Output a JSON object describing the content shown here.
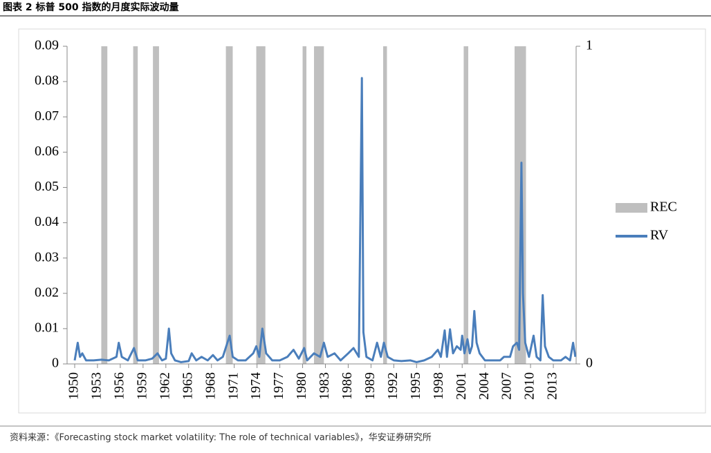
{
  "chart_data": {
    "type": "line",
    "title": "图表 2 标普 500 指数的月度实际波动量",
    "source": "资料来源：《Forecasting stock market volatility: The role of technical variables》，华安证券研究所",
    "xlim": [
      1949,
      2016
    ],
    "xticks": [
      1950,
      1953,
      1956,
      1959,
      1962,
      1965,
      1968,
      1971,
      1974,
      1977,
      1980,
      1983,
      1986,
      1989,
      1992,
      1995,
      1998,
      2001,
      2004,
      2007,
      2010,
      2013
    ],
    "ylim": [
      0,
      0.09
    ],
    "yticks": [
      0,
      0.01,
      0.02,
      0.03,
      0.04,
      0.05,
      0.06,
      0.07,
      0.08,
      0.09
    ],
    "y2lim": [
      0,
      1
    ],
    "y2ticks": [
      0,
      1
    ],
    "recessions": {
      "name": "REC",
      "color": "#bfbfbf",
      "axis": "y2",
      "x_start": [
        1953.5,
        1957.7,
        1960.3,
        1969.9,
        1973.9,
        1980.0,
        1981.5,
        1990.6,
        2001.2,
        2007.9
      ],
      "x_end": [
        1954.3,
        1958.3,
        1961.1,
        1970.8,
        1975.1,
        1980.5,
        1982.8,
        1991.1,
        2001.8,
        2009.4
      ],
      "values": [
        1,
        1,
        1,
        1,
        1,
        1,
        1,
        1,
        1,
        1
      ]
    },
    "series": [
      {
        "name": "RV",
        "color": "#4a7ebb",
        "x": [
          1950.0,
          1950.4,
          1950.7,
          1951.0,
          1951.5,
          1952.5,
          1953.5,
          1954.5,
          1955.5,
          1955.8,
          1956.2,
          1957.0,
          1957.8,
          1958.3,
          1959.3,
          1960.2,
          1960.9,
          1961.5,
          1962.0,
          1962.4,
          1962.7,
          1963.2,
          1964.0,
          1965.0,
          1965.4,
          1966.0,
          1966.7,
          1967.5,
          1968.2,
          1968.8,
          1969.5,
          1970.4,
          1970.8,
          1971.5,
          1972.5,
          1973.5,
          1973.9,
          1974.3,
          1974.7,
          1975.2,
          1976.0,
          1977.0,
          1978.0,
          1978.8,
          1979.5,
          1980.2,
          1980.6,
          1981.5,
          1982.3,
          1982.8,
          1983.3,
          1984.2,
          1985.0,
          1986.0,
          1986.7,
          1987.4,
          1987.8,
          1988.0,
          1988.4,
          1989.2,
          1989.8,
          1990.3,
          1990.7,
          1991.2,
          1992.0,
          1993.0,
          1994.2,
          1995.0,
          1996.0,
          1997.0,
          1997.8,
          1998.2,
          1998.7,
          1999.0,
          1999.4,
          1999.8,
          2000.3,
          2000.8,
          2001.0,
          2001.3,
          2001.7,
          2002.0,
          2002.3,
          2002.6,
          2002.9,
          2003.3,
          2004.0,
          2005.0,
          2006.0,
          2006.5,
          2007.3,
          2007.7,
          2008.2,
          2008.5,
          2008.8,
          2009.0,
          2009.3,
          2009.8,
          2010.4,
          2010.8,
          2011.3,
          2011.6,
          2011.9,
          2012.4,
          2013.0,
          2014.0,
          2014.6,
          2015.2,
          2015.6,
          2015.9
        ],
        "values": [
          0.001,
          0.006,
          0.002,
          0.003,
          0.001,
          0.001,
          0.0012,
          0.001,
          0.002,
          0.006,
          0.002,
          0.001,
          0.0045,
          0.001,
          0.001,
          0.0015,
          0.003,
          0.001,
          0.0015,
          0.01,
          0.003,
          0.001,
          0.0005,
          0.0008,
          0.003,
          0.001,
          0.002,
          0.001,
          0.0025,
          0.001,
          0.002,
          0.008,
          0.002,
          0.001,
          0.001,
          0.003,
          0.005,
          0.002,
          0.01,
          0.003,
          0.001,
          0.001,
          0.002,
          0.004,
          0.0015,
          0.0045,
          0.001,
          0.003,
          0.002,
          0.006,
          0.002,
          0.003,
          0.001,
          0.003,
          0.0045,
          0.002,
          0.081,
          0.009,
          0.002,
          0.001,
          0.006,
          0.002,
          0.006,
          0.002,
          0.001,
          0.0008,
          0.001,
          0.0005,
          0.001,
          0.002,
          0.004,
          0.002,
          0.0095,
          0.002,
          0.0098,
          0.003,
          0.005,
          0.004,
          0.008,
          0.003,
          0.007,
          0.003,
          0.005,
          0.015,
          0.006,
          0.003,
          0.001,
          0.001,
          0.001,
          0.002,
          0.002,
          0.005,
          0.006,
          0.004,
          0.057,
          0.02,
          0.006,
          0.002,
          0.008,
          0.002,
          0.001,
          0.0195,
          0.005,
          0.002,
          0.001,
          0.001,
          0.002,
          0.001,
          0.006,
          0.002
        ]
      }
    ]
  }
}
